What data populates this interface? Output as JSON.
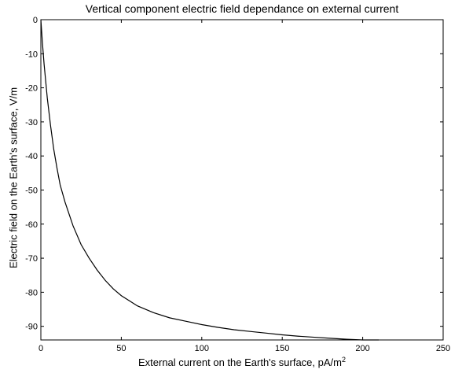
{
  "chart_data": {
    "type": "line",
    "title": "Vertical component electric field dependance on external current",
    "xlabel": "External current on the Earth's surface, pA/m",
    "xlabel_superscript": "2",
    "ylabel": "Electric field on the Earth's surface,  V/m",
    "xlim": [
      0,
      250
    ],
    "ylim": [
      -94,
      0
    ],
    "xticks": [
      0,
      50,
      100,
      150,
      200,
      250
    ],
    "yticks": [
      0,
      -10,
      -20,
      -30,
      -40,
      -50,
      -60,
      -70,
      -80,
      -90
    ],
    "grid": false,
    "legend": "none",
    "series": [
      {
        "x": [
          0,
          1,
          2,
          4,
          6,
          8,
          10,
          12,
          15,
          20,
          25,
          30,
          35,
          40,
          45,
          50,
          60,
          70,
          80,
          90,
          100,
          110,
          120,
          130,
          140,
          150,
          160,
          170,
          180,
          190,
          200,
          210
        ],
        "y": [
          0,
          -7,
          -13,
          -23,
          -31,
          -38,
          -43.5,
          -48.5,
          -53.5,
          -60.5,
          -66,
          -70,
          -73.5,
          -76.5,
          -79,
          -81,
          -84,
          -86,
          -87.5,
          -88.5,
          -89.5,
          -90.3,
          -91,
          -91.5,
          -92,
          -92.5,
          -92.9,
          -93.2,
          -93.5,
          -93.8,
          -94,
          -94
        ]
      }
    ]
  }
}
